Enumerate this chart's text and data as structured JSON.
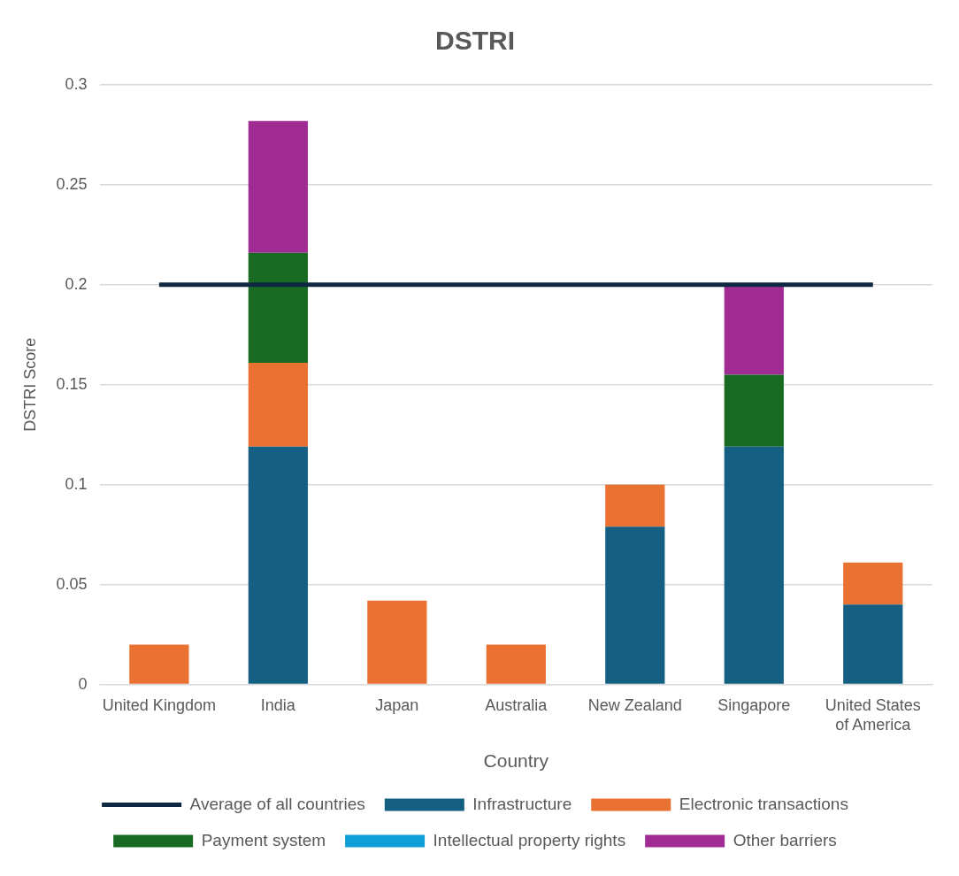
{
  "chart_data": {
    "type": "bar",
    "title": "DSTRI",
    "xlabel": "Country",
    "ylabel": "DSTRI Score",
    "categories": [
      "United Kingdom",
      "India",
      "Japan",
      "Australia",
      "New Zealand",
      "Singapore",
      "United States of America"
    ],
    "stacked": true,
    "grid": "y",
    "legend": "bottom",
    "ylim": [
      0,
      0.3
    ],
    "yticks": [
      0,
      0.05,
      0.1,
      0.15,
      0.2,
      0.25,
      0.3
    ],
    "series": [
      {
        "name": "Infrastructure",
        "color": "#156082",
        "values": [
          0,
          0.119,
          0,
          0,
          0.079,
          0.119,
          0.04
        ]
      },
      {
        "name": "Electronic transactions",
        "color": "#e97132",
        "values": [
          0.02,
          0.042,
          0.042,
          0.02,
          0.021,
          0,
          0.021
        ]
      },
      {
        "name": "Payment system",
        "color": "#196b24",
        "values": [
          0,
          0.055,
          0,
          0,
          0,
          0.036,
          0
        ]
      },
      {
        "name": "Intellectual property rights",
        "color": "#0f9ed5",
        "values": [
          0,
          0,
          0,
          0,
          0,
          0,
          0
        ]
      },
      {
        "name": "Other barriers",
        "color": "#a02b93",
        "values": [
          0,
          0.066,
          0,
          0,
          0,
          0.045,
          0
        ]
      },
      {
        "name": "Average of all countries",
        "type": "line",
        "color": "#0e2841",
        "values": [
          0.2,
          0.2,
          0.2,
          0.2,
          0.2,
          0.2,
          0.2
        ]
      }
    ]
  }
}
